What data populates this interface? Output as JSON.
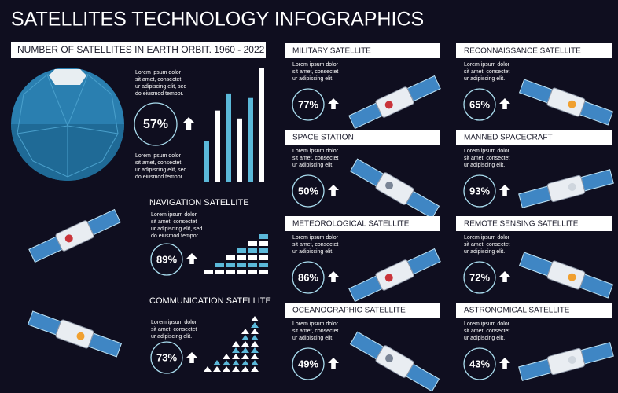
{
  "title": "SATELLITES TECHNOLOGY INFOGRAPHICS",
  "orbit": {
    "header": "NUMBER OF SATELLITES IN EARTH ORBIT. 1960 - 2022",
    "text_top": [
      "Lorem ipsum dolor",
      "sit amet, consectet",
      "ur adipiscing elit, sed",
      "do eiusmod tempor."
    ],
    "percent": "57%",
    "text_bottom": [
      "Lorem ipsum dolor",
      "sit amet, consectet",
      "ur adipiscing elit, sed",
      "do eiusmod tempor."
    ],
    "bars": [
      36,
      63,
      78,
      56,
      74,
      100
    ],
    "bar_colors": [
      "#5bb8d9",
      "#ffffff"
    ]
  },
  "navigation": {
    "title": "NAVIGATION SATELLITE",
    "text": [
      "Lorem ipsum dolor",
      "sit amet, consectet",
      "ur adipiscing elit, sed",
      "do eiusmod tempor."
    ],
    "percent": "89%",
    "blocks": [
      1,
      2,
      3,
      4,
      5,
      6
    ]
  },
  "communication": {
    "title": "COMMUNICATION SATELLITE",
    "text": [
      "Lorem ipsum dolor",
      "sit amet, consectet",
      "ur adipiscing elit."
    ],
    "percent": "73%",
    "triangles": [
      1,
      2,
      3,
      5,
      7,
      9
    ]
  },
  "cards": [
    {
      "title": "MILITARY SATELLITE",
      "text": [
        "Lorem ipsum dolor",
        "sit amet, consectet",
        "ur adipiscing elit."
      ],
      "percent": "77%"
    },
    {
      "title": "RECONNAISSANCE SATELLITE",
      "text": [
        "Lorem ipsum dolor",
        "sit amet, consectet",
        "ur adipiscing elit."
      ],
      "percent": "65%"
    },
    {
      "title": "SPACE STATION",
      "text": [
        "Lorem ipsum dolor",
        "sit amet, consectet",
        "ur adipiscing elit."
      ],
      "percent": "50%"
    },
    {
      "title": "MANNED SPACECRAFT",
      "text": [
        "Lorem ipsum dolor",
        "sit amet, consectet",
        "ur adipiscing elit."
      ],
      "percent": "93%"
    },
    {
      "title": "METEOROLOGICAL SATELLITE",
      "text": [
        "Lorem ipsum dolor",
        "sit amet, consectet",
        "ur adipiscing elit."
      ],
      "percent": "86%"
    },
    {
      "title": "REMOTE SENSING SATELLITE",
      "text": [
        "Lorem ipsum dolor",
        "sit amet, consectet",
        "ur adipiscing elit."
      ],
      "percent": "72%"
    },
    {
      "title": "OCEANOGRAPHIC SATELLITE",
      "text": [
        "Lorem ipsum dolor",
        "sit amet, consectet",
        "ur adipiscing elit."
      ],
      "percent": "49%"
    },
    {
      "title": "ASTRONOMICAL SATELLITE",
      "text": [
        "Lorem ipsum dolor",
        "sit amet, consectet",
        "ur adipiscing elit."
      ],
      "percent": "43%"
    }
  ]
}
